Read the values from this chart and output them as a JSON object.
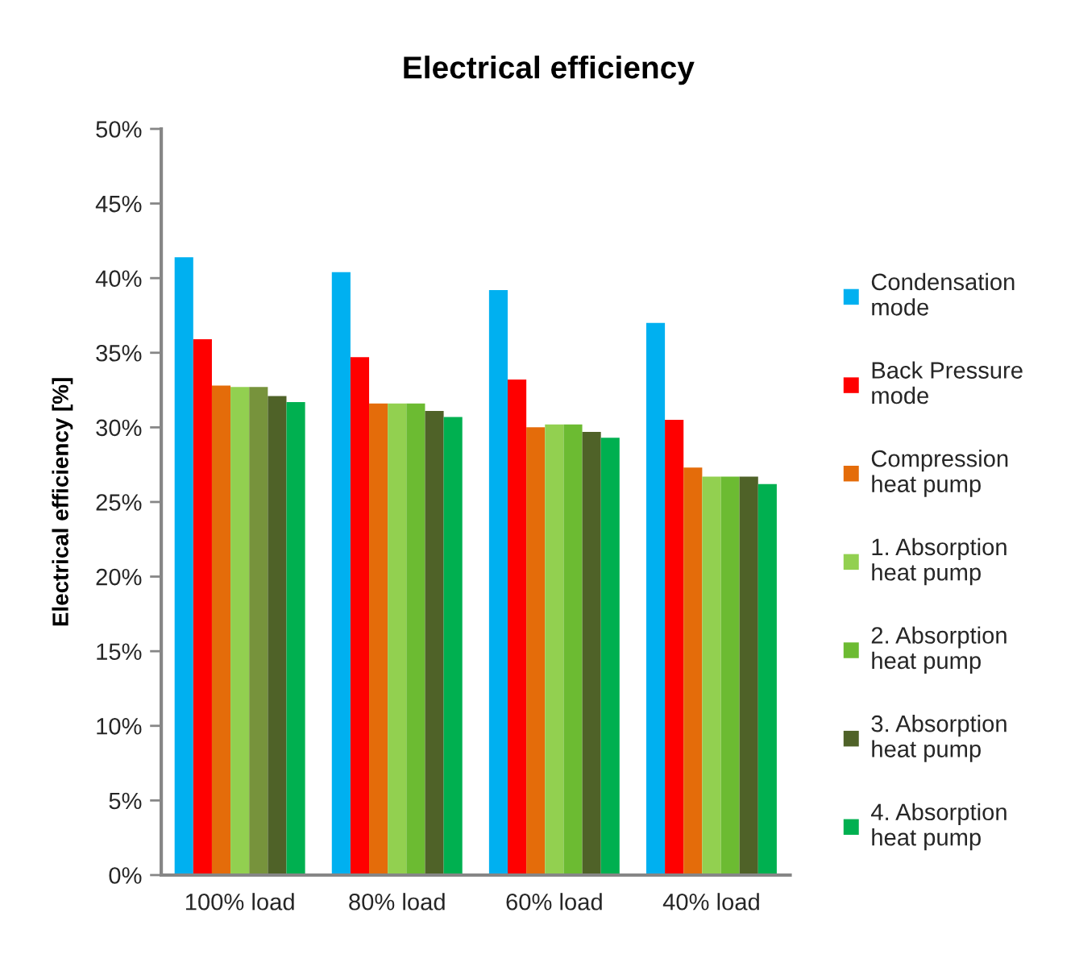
{
  "chart_data": {
    "type": "bar",
    "title": "Electrical efficiency",
    "ylabel": "Electrical efficiency [%]",
    "categories": [
      "100% load",
      "80% load",
      "60% load",
      "40% load"
    ],
    "series": [
      {
        "name": "Condensation mode",
        "color": "#00b0f0",
        "values": [
          41.4,
          40.4,
          39.2,
          37.0
        ]
      },
      {
        "name": "Back Pressure mode",
        "color": "#ff0000",
        "values": [
          35.9,
          34.7,
          33.2,
          30.5
        ]
      },
      {
        "name": "Compression heat pump",
        "color": "#e46c0a",
        "values": [
          32.8,
          31.6,
          30.0,
          27.3
        ]
      },
      {
        "name": "1. Absorption heat pump",
        "color": "#92d050",
        "values": [
          32.7,
          31.6,
          30.2,
          26.7
        ]
      },
      {
        "name": "2. Absorption heat pump",
        "color": "#6cbb32",
        "colors": [
          "#77933c",
          "#6cbb32",
          "#6cbb32",
          "#6cbb32"
        ],
        "values": [
          32.7,
          31.6,
          30.2,
          26.7
        ]
      },
      {
        "name": "3. Absorption heat pump",
        "color": "#4f6228",
        "values": [
          32.1,
          31.1,
          29.7,
          26.7
        ]
      },
      {
        "name": "4. Absorption heat pump",
        "color": "#00b050",
        "values": [
          31.7,
          30.7,
          29.3,
          26.2
        ]
      }
    ],
    "ylim": [
      0,
      50
    ],
    "yticks": [
      {
        "value": 0,
        "label": "0%"
      },
      {
        "value": 5,
        "label": "5%"
      },
      {
        "value": 10,
        "label": "10%"
      },
      {
        "value": 15,
        "label": "15%"
      },
      {
        "value": 20,
        "label": "20%"
      },
      {
        "value": 25,
        "label": "25%"
      },
      {
        "value": 30,
        "label": "30%"
      },
      {
        "value": 35,
        "label": "35%"
      },
      {
        "value": 40,
        "label": "40%"
      },
      {
        "value": 45,
        "label": "45%"
      },
      {
        "value": 50,
        "label": "50%"
      }
    ],
    "grid": false,
    "legend": "right"
  }
}
